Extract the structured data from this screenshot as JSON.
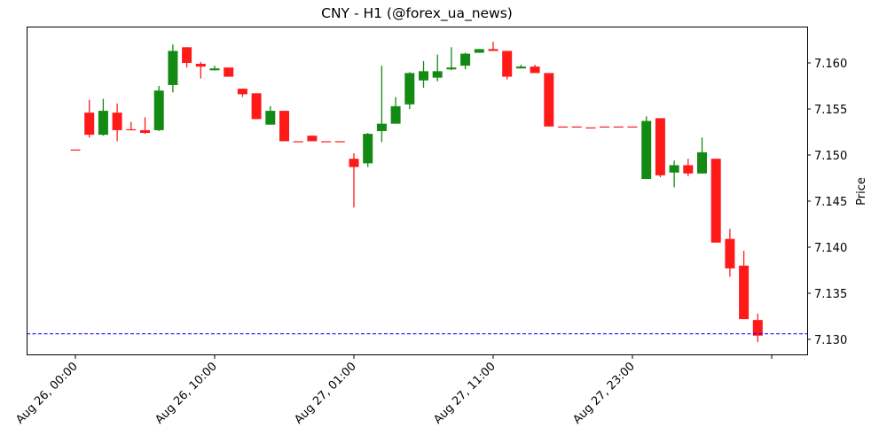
{
  "chart_data": {
    "type": "candlestick",
    "title": "CNY - H1 (@forex_ua_news)",
    "xlabel": "",
    "ylabel": "Price",
    "ylim": [
      7.1284,
      7.164
    ],
    "grid": false,
    "legend": null,
    "y_ticks": [
      "7.130",
      "7.135",
      "7.140",
      "7.145",
      "7.150",
      "7.155",
      "7.160"
    ],
    "x_ticks": [
      {
        "index": 0,
        "label": "Aug 26, 00:00"
      },
      {
        "index": 10,
        "label": "Aug 26, 10:00"
      },
      {
        "index": 20,
        "label": "Aug 27, 01:00"
      },
      {
        "index": 30,
        "label": "Aug 27, 11:00"
      },
      {
        "index": 40,
        "label": "Aug 27, 23:00"
      },
      {
        "index": 50,
        "label": ""
      }
    ],
    "reference_line": {
      "value": 7.1306,
      "style": "dashed",
      "color": "#0000ff"
    },
    "colors": {
      "up": "#138a13",
      "down": "#ff1a1a"
    },
    "candles": [
      {
        "o": 7.1506,
        "h": 7.1506,
        "l": 7.1506,
        "c": 7.1506
      },
      {
        "o": 7.1546,
        "h": 7.156,
        "l": 7.1519,
        "c": 7.1522
      },
      {
        "o": 7.1522,
        "h": 7.1561,
        "l": 7.1521,
        "c": 7.1548
      },
      {
        "o": 7.1546,
        "h": 7.1556,
        "l": 7.1515,
        "c": 7.1527
      },
      {
        "o": 7.1528,
        "h": 7.1536,
        "l": 7.1527,
        "c": 7.1527
      },
      {
        "o": 7.1527,
        "h": 7.1541,
        "l": 7.1523,
        "c": 7.1524
      },
      {
        "o": 7.1527,
        "h": 7.1575,
        "l": 7.1526,
        "c": 7.157
      },
      {
        "o": 7.1576,
        "h": 7.162,
        "l": 7.1568,
        "c": 7.1613
      },
      {
        "o": 7.1617,
        "h": 7.1617,
        "l": 7.1595,
        "c": 7.16
      },
      {
        "o": 7.1599,
        "h": 7.1601,
        "l": 7.1583,
        "c": 7.1596
      },
      {
        "o": 7.1592,
        "h": 7.1597,
        "l": 7.1592,
        "c": 7.1594
      },
      {
        "o": 7.1595,
        "h": 7.1595,
        "l": 7.1585,
        "c": 7.1585
      },
      {
        "o": 7.1572,
        "h": 7.1572,
        "l": 7.1563,
        "c": 7.1566
      },
      {
        "o": 7.1567,
        "h": 7.1567,
        "l": 7.1539,
        "c": 7.1539
      },
      {
        "o": 7.1533,
        "h": 7.1553,
        "l": 7.1533,
        "c": 7.1548
      },
      {
        "o": 7.1548,
        "h": 7.1548,
        "l": 7.1515,
        "c": 7.1515
      },
      {
        "o": 7.1515,
        "h": 7.1515,
        "l": 7.1515,
        "c": 7.1515
      },
      {
        "o": 7.1521,
        "h": 7.1521,
        "l": 7.1515,
        "c": 7.1515
      },
      {
        "o": 7.1515,
        "h": 7.1515,
        "l": 7.1515,
        "c": 7.1515
      },
      {
        "o": 7.1515,
        "h": 7.1515,
        "l": 7.1515,
        "c": 7.1515
      },
      {
        "o": 7.1496,
        "h": 7.1502,
        "l": 7.1443,
        "c": 7.1487
      },
      {
        "o": 7.1491,
        "h": 7.1524,
        "l": 7.1487,
        "c": 7.1523
      },
      {
        "o": 7.1526,
        "h": 7.1597,
        "l": 7.1514,
        "c": 7.1534
      },
      {
        "o": 7.1534,
        "h": 7.1563,
        "l": 7.1534,
        "c": 7.1553
      },
      {
        "o": 7.1555,
        "h": 7.159,
        "l": 7.155,
        "c": 7.1589
      },
      {
        "o": 7.1581,
        "h": 7.1602,
        "l": 7.1573,
        "c": 7.1591
      },
      {
        "o": 7.1584,
        "h": 7.1609,
        "l": 7.158,
        "c": 7.1591
      },
      {
        "o": 7.1593,
        "h": 7.1617,
        "l": 7.1592,
        "c": 7.1595
      },
      {
        "o": 7.1597,
        "h": 7.1611,
        "l": 7.1593,
        "c": 7.161
      },
      {
        "o": 7.1611,
        "h": 7.1615,
        "l": 7.1611,
        "c": 7.1615
      },
      {
        "o": 7.1615,
        "h": 7.1623,
        "l": 7.1613,
        "c": 7.1613
      },
      {
        "o": 7.1613,
        "h": 7.1613,
        "l": 7.1582,
        "c": 7.1585
      },
      {
        "o": 7.1594,
        "h": 7.1598,
        "l": 7.1594,
        "c": 7.1596
      },
      {
        "o": 7.1596,
        "h": 7.1598,
        "l": 7.1589,
        "c": 7.1589
      },
      {
        "o": 7.1589,
        "h": 7.1589,
        "l": 7.1531,
        "c": 7.1531
      },
      {
        "o": 7.1531,
        "h": 7.1531,
        "l": 7.1531,
        "c": 7.1531
      },
      {
        "o": 7.1531,
        "h": 7.1531,
        "l": 7.1531,
        "c": 7.1531
      },
      {
        "o": 7.153,
        "h": 7.153,
        "l": 7.153,
        "c": 7.153
      },
      {
        "o": 7.1531,
        "h": 7.1531,
        "l": 7.1531,
        "c": 7.1531
      },
      {
        "o": 7.1531,
        "h": 7.1531,
        "l": 7.1531,
        "c": 7.1531
      },
      {
        "o": 7.1531,
        "h": 7.1531,
        "l": 7.1531,
        "c": 7.1531
      },
      {
        "o": 7.1474,
        "h": 7.1542,
        "l": 7.1474,
        "c": 7.1537
      },
      {
        "o": 7.154,
        "h": 7.154,
        "l": 7.1476,
        "c": 7.1478
      },
      {
        "o": 7.1481,
        "h": 7.1494,
        "l": 7.1465,
        "c": 7.1489
      },
      {
        "o": 7.1489,
        "h": 7.1496,
        "l": 7.1477,
        "c": 7.148
      },
      {
        "o": 7.148,
        "h": 7.1519,
        "l": 7.148,
        "c": 7.1503
      },
      {
        "o": 7.1496,
        "h": 7.1496,
        "l": 7.1405,
        "c": 7.1405
      },
      {
        "o": 7.1409,
        "h": 7.142,
        "l": 7.1368,
        "c": 7.1377
      },
      {
        "o": 7.138,
        "h": 7.1396,
        "l": 7.1322,
        "c": 7.1322
      },
      {
        "o": 7.1321,
        "h": 7.1328,
        "l": 7.1297,
        "c": 7.1304
      }
    ]
  }
}
